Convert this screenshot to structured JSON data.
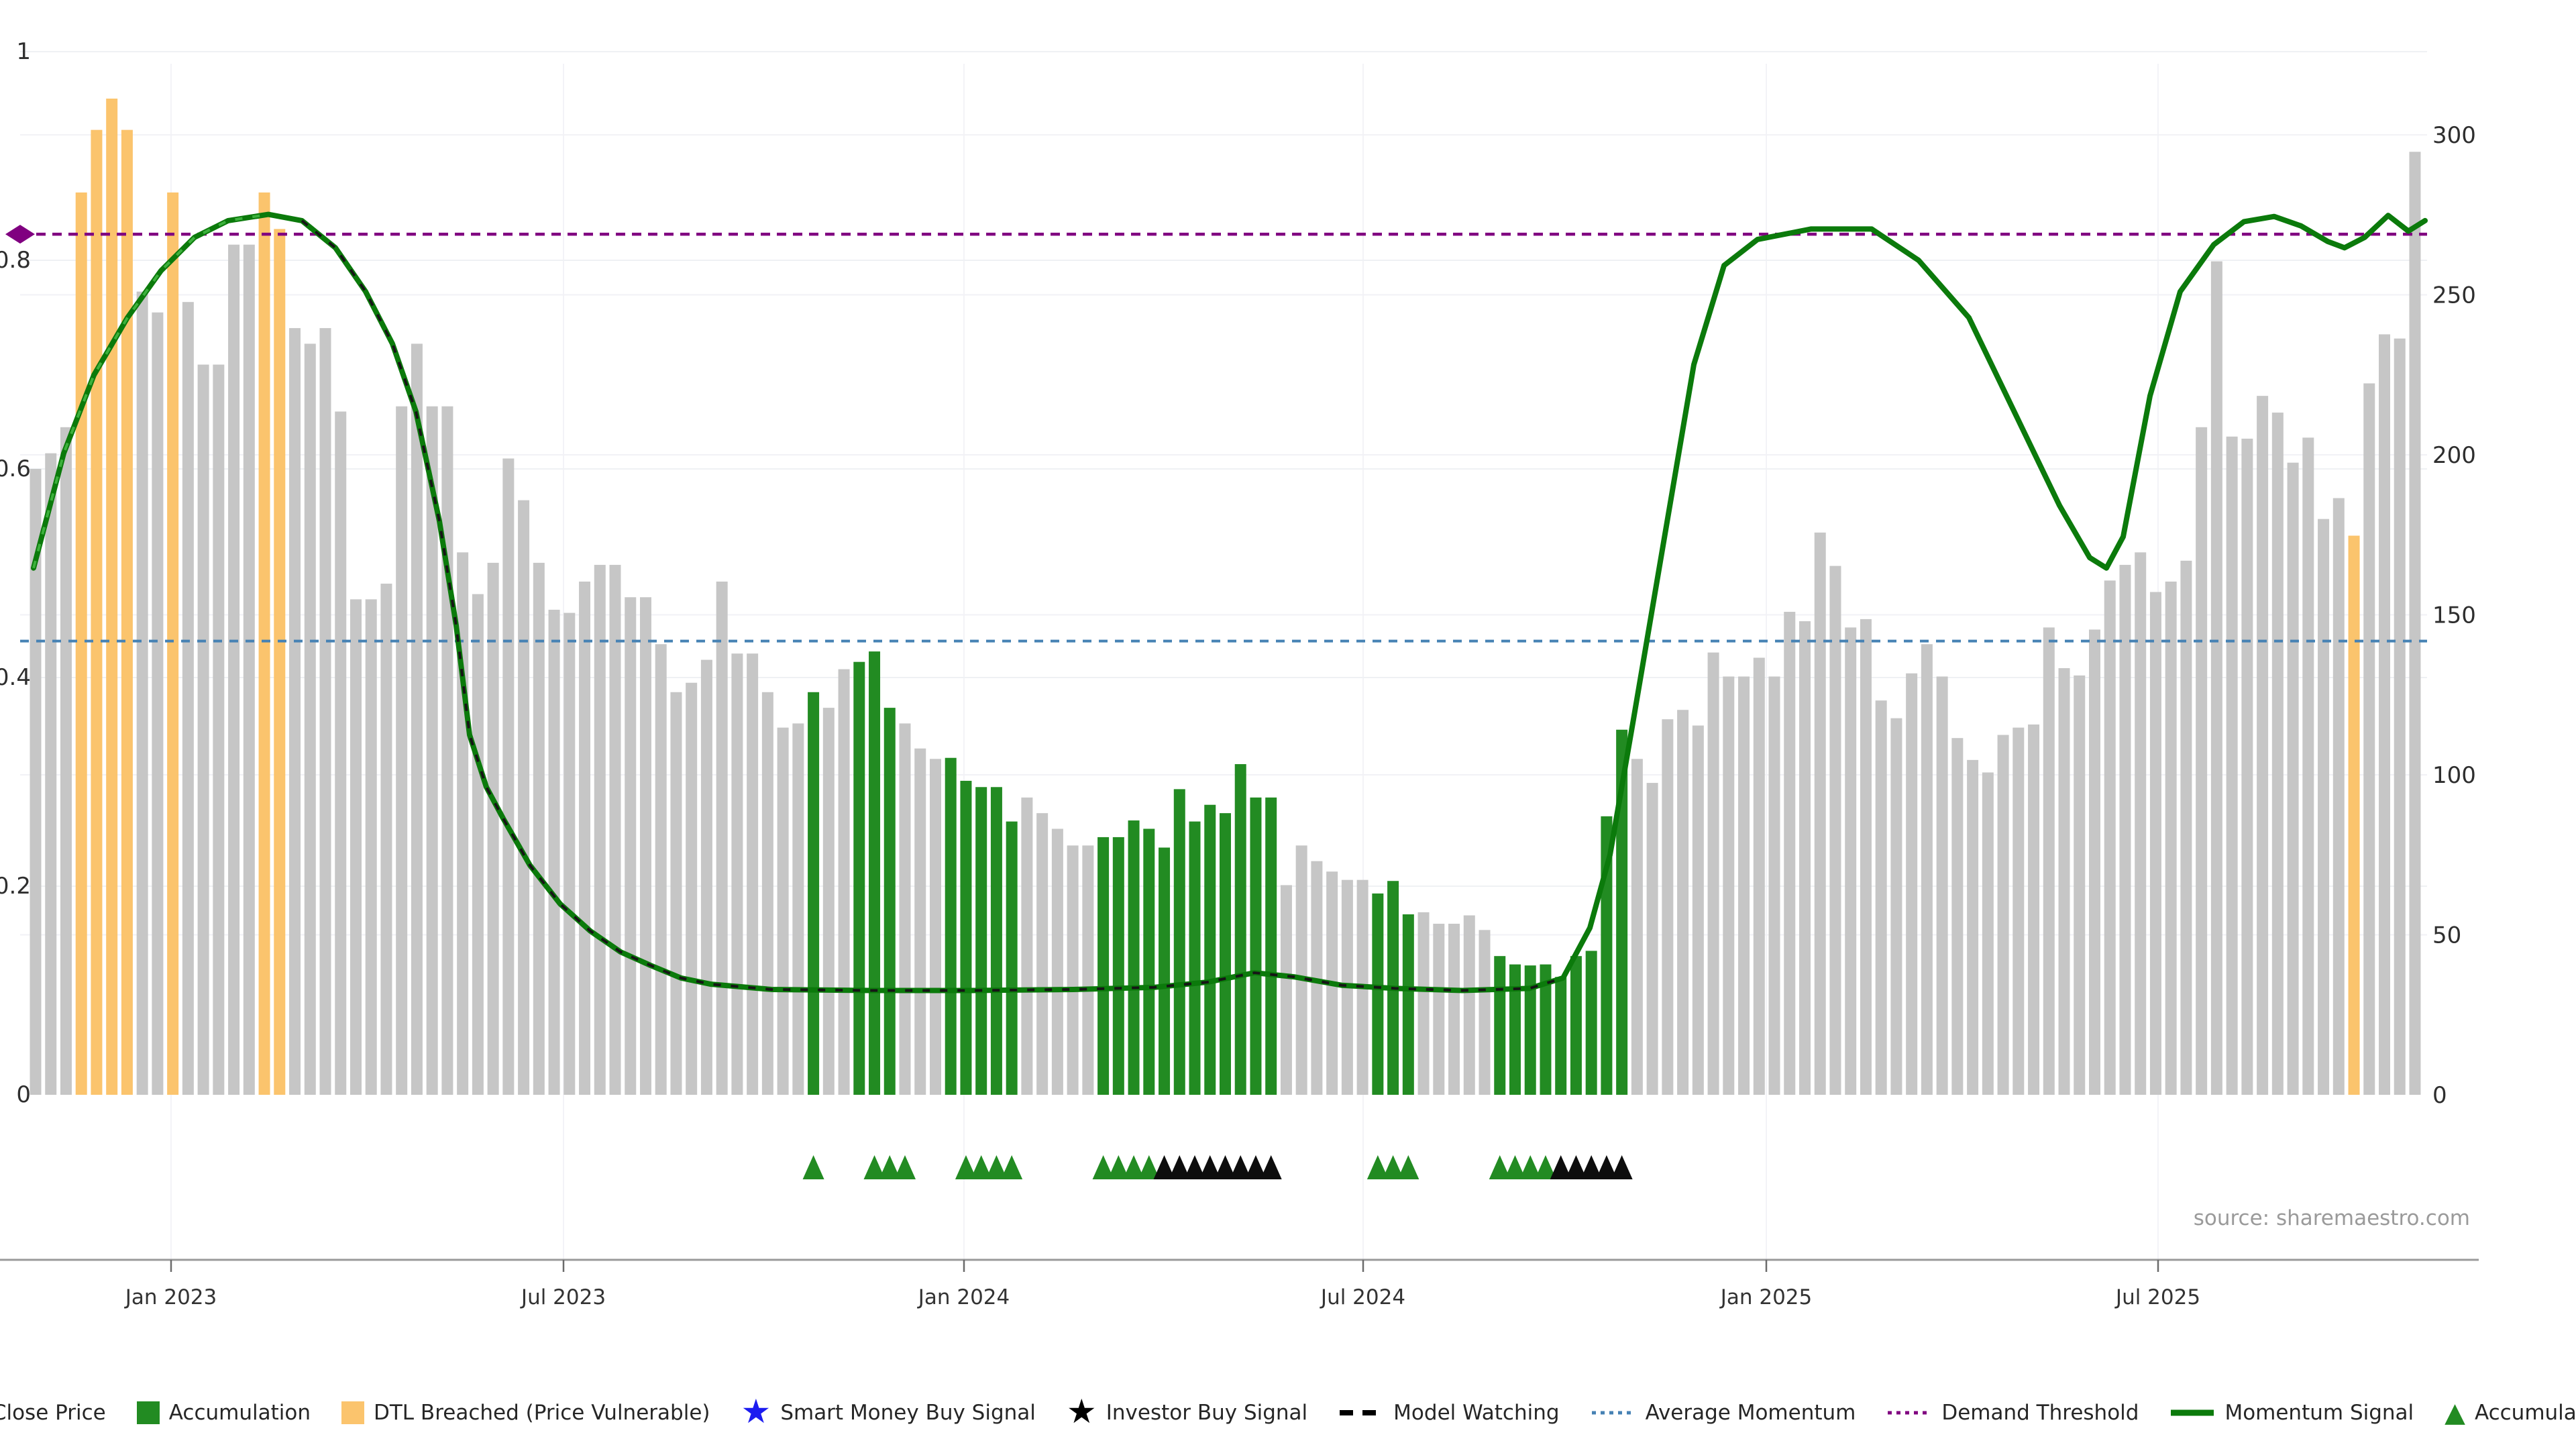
{
  "source": {
    "text": "source: sharemaestro.com"
  },
  "legend": {
    "items": [
      {
        "label": "Close Price",
        "swatch": "square",
        "color": "#c6c6c6"
      },
      {
        "label": "Accumulation",
        "swatch": "square",
        "color": "#228B22"
      },
      {
        "label": "DTL Breached (Price Vulnerable)",
        "swatch": "square",
        "color": "#fbc46d"
      },
      {
        "label": "Smart Money Buy Signal",
        "swatch": "star",
        "color": "#1c1cf0"
      },
      {
        "label": "Investor Buy Signal",
        "swatch": "star",
        "color": "#000000"
      },
      {
        "label": "Model Watching",
        "swatch": "dashes",
        "color": "#000000"
      },
      {
        "label": "Average Momentum",
        "swatch": "dotted",
        "color": "#4682B4"
      },
      {
        "label": "Demand Threshold",
        "swatch": "dotted",
        "color": "#800080"
      },
      {
        "label": "Momentum Signal",
        "swatch": "line",
        "color": "#0b7a0b"
      },
      {
        "label": "Accumulation",
        "swatch": "triangle",
        "color": "#228B22"
      }
    ]
  },
  "chart_data": {
    "type": "bar+line",
    "title": "",
    "left_axis": {
      "range": [
        0,
        1
      ],
      "ticks": [
        0,
        0.2,
        0.4,
        0.6,
        0.8,
        1
      ]
    },
    "right_axis": {
      "range": [
        0,
        300
      ],
      "ticks": [
        0,
        50,
        100,
        150,
        200,
        250,
        300
      ]
    },
    "x_axis": {
      "tick_labels": [
        "Jan 2023",
        "Jul 2023",
        "Jan 2024",
        "Jul 2024",
        "Jan 2025",
        "Jul 2025"
      ],
      "tick_x": [
        255,
        840,
        1437,
        2032,
        2633,
        3217
      ]
    },
    "grid": true,
    "legend_position": "bottom",
    "bars": {
      "note": "weekly bars, left-axis scale 0-1; color key g=close-price gray, a=accumulation green, d=DTL-breached orange",
      "values": [
        0.6,
        0.615,
        0.64,
        0.865,
        0.925,
        0.955,
        0.925,
        0.77,
        0.75,
        0.865,
        0.76,
        0.7,
        0.7,
        0.815,
        0.815,
        0.865,
        0.83,
        0.735,
        0.72,
        0.735,
        0.655,
        0.475,
        0.475,
        0.49,
        0.66,
        0.72,
        0.66,
        0.66,
        0.52,
        0.48,
        0.51,
        0.61,
        0.57,
        0.51,
        0.465,
        0.462,
        0.492,
        0.508,
        0.508,
        0.477,
        0.477,
        0.432,
        0.386,
        0.395,
        0.417,
        0.492,
        0.423,
        0.423,
        0.386,
        0.352,
        0.356,
        0.386,
        0.371,
        0.408,
        0.415,
        0.425,
        0.371,
        0.356,
        0.332,
        0.322,
        0.323,
        0.301,
        0.295,
        0.295,
        0.262,
        0.285,
        0.27,
        0.255,
        0.239,
        0.239,
        0.247,
        0.247,
        0.263,
        0.255,
        0.237,
        0.293,
        0.262,
        0.278,
        0.27,
        0.317,
        0.285,
        0.285,
        0.201,
        0.239,
        0.224,
        0.214,
        0.206,
        0.206,
        0.193,
        0.205,
        0.173,
        0.175,
        0.164,
        0.164,
        0.172,
        0.158,
        0.133,
        0.125,
        0.124,
        0.125,
        0.113,
        0.133,
        0.138,
        0.267,
        0.35,
        0.322,
        0.299,
        0.36,
        0.369,
        0.354,
        0.424,
        0.401,
        0.401,
        0.419,
        0.401,
        0.463,
        0.454,
        0.539,
        0.507,
        0.448,
        0.456,
        0.378,
        0.361,
        0.404,
        0.432,
        0.401,
        0.342,
        0.321,
        0.309,
        0.345,
        0.352,
        0.355,
        0.448,
        0.409,
        0.402,
        0.446,
        0.493,
        0.508,
        0.52,
        0.482,
        0.492,
        0.512,
        0.64,
        0.799,
        0.631,
        0.629,
        0.67,
        0.654,
        0.606,
        0.63,
        0.552,
        0.572,
        0.536,
        0.682,
        0.729,
        0.725,
        0.904
      ],
      "colors": "gggddddggdgggggddggggggggggggggggggggggggggggggggggagg60aaagggaaaaagggggaaaaaaaaaaaaggggggaaagggggaaaaaaaaagggggggggggggggggggggggggggggggggggggggggggggggd"
    },
    "momentum_line": {
      "color": "#0b7a0b",
      "points": [
        [
          50,
          0.505
        ],
        [
          95,
          0.615
        ],
        [
          140,
          0.69
        ],
        [
          190,
          0.745
        ],
        [
          240,
          0.79
        ],
        [
          290,
          0.822
        ],
        [
          340,
          0.838
        ],
        [
          400,
          0.844
        ],
        [
          450,
          0.838
        ],
        [
          500,
          0.812
        ],
        [
          545,
          0.77
        ],
        [
          585,
          0.72
        ],
        [
          620,
          0.655
        ],
        [
          655,
          0.55
        ],
        [
          680,
          0.45
        ],
        [
          700,
          0.345
        ],
        [
          725,
          0.295
        ],
        [
          750,
          0.265
        ],
        [
          790,
          0.22
        ],
        [
          835,
          0.183
        ],
        [
          880,
          0.157
        ],
        [
          925,
          0.137
        ],
        [
          970,
          0.124
        ],
        [
          1015,
          0.112
        ],
        [
          1060,
          0.106
        ],
        [
          1150,
          0.101
        ],
        [
          1300,
          0.1
        ],
        [
          1450,
          0.1
        ],
        [
          1600,
          0.101
        ],
        [
          1720,
          0.103
        ],
        [
          1800,
          0.108
        ],
        [
          1870,
          0.117
        ],
        [
          1930,
          0.113
        ],
        [
          2000,
          0.105
        ],
        [
          2080,
          0.102
        ],
        [
          2180,
          0.1
        ],
        [
          2280,
          0.102
        ],
        [
          2330,
          0.112
        ],
        [
          2370,
          0.16
        ],
        [
          2400,
          0.23
        ],
        [
          2435,
          0.36
        ],
        [
          2480,
          0.53
        ],
        [
          2525,
          0.7
        ],
        [
          2570,
          0.795
        ],
        [
          2620,
          0.82
        ],
        [
          2700,
          0.83
        ],
        [
          2790,
          0.83
        ],
        [
          2860,
          0.8
        ],
        [
          2935,
          0.745
        ],
        [
          3010,
          0.645
        ],
        [
          3070,
          0.565
        ],
        [
          3115,
          0.515
        ],
        [
          3140,
          0.505
        ],
        [
          3165,
          0.535
        ],
        [
          3205,
          0.67
        ],
        [
          3250,
          0.77
        ],
        [
          3300,
          0.815
        ],
        [
          3345,
          0.837
        ],
        [
          3390,
          0.842
        ],
        [
          3430,
          0.833
        ],
        [
          3470,
          0.818
        ],
        [
          3495,
          0.812
        ],
        [
          3525,
          0.822
        ],
        [
          3560,
          0.843
        ],
        [
          3590,
          0.828
        ],
        [
          3615,
          0.838
        ]
      ]
    },
    "demand_threshold": {
      "value": 0.825,
      "color": "#800080"
    },
    "average_momentum": {
      "value": 0.435,
      "color": "#4682B4"
    },
    "model_watching_overlay": {
      "x_range": [
        430,
        2330
      ],
      "color": "#161616"
    },
    "accumulation_overlay": {
      "x_range": [
        50,
        430
      ],
      "color": "#3db13d"
    },
    "markers": {
      "accumulation_bar_indices": [
        51,
        55,
        56,
        57,
        61,
        62,
        63,
        64,
        70,
        71,
        72,
        73,
        88,
        89,
        90,
        96,
        97,
        98,
        99
      ],
      "investor_bar_indices": [
        74,
        75,
        76,
        77,
        78,
        79,
        80,
        81,
        100,
        101,
        102,
        103,
        104
      ],
      "accumulation_color": "#228B22",
      "investor_color": "#0d0d0d"
    }
  }
}
